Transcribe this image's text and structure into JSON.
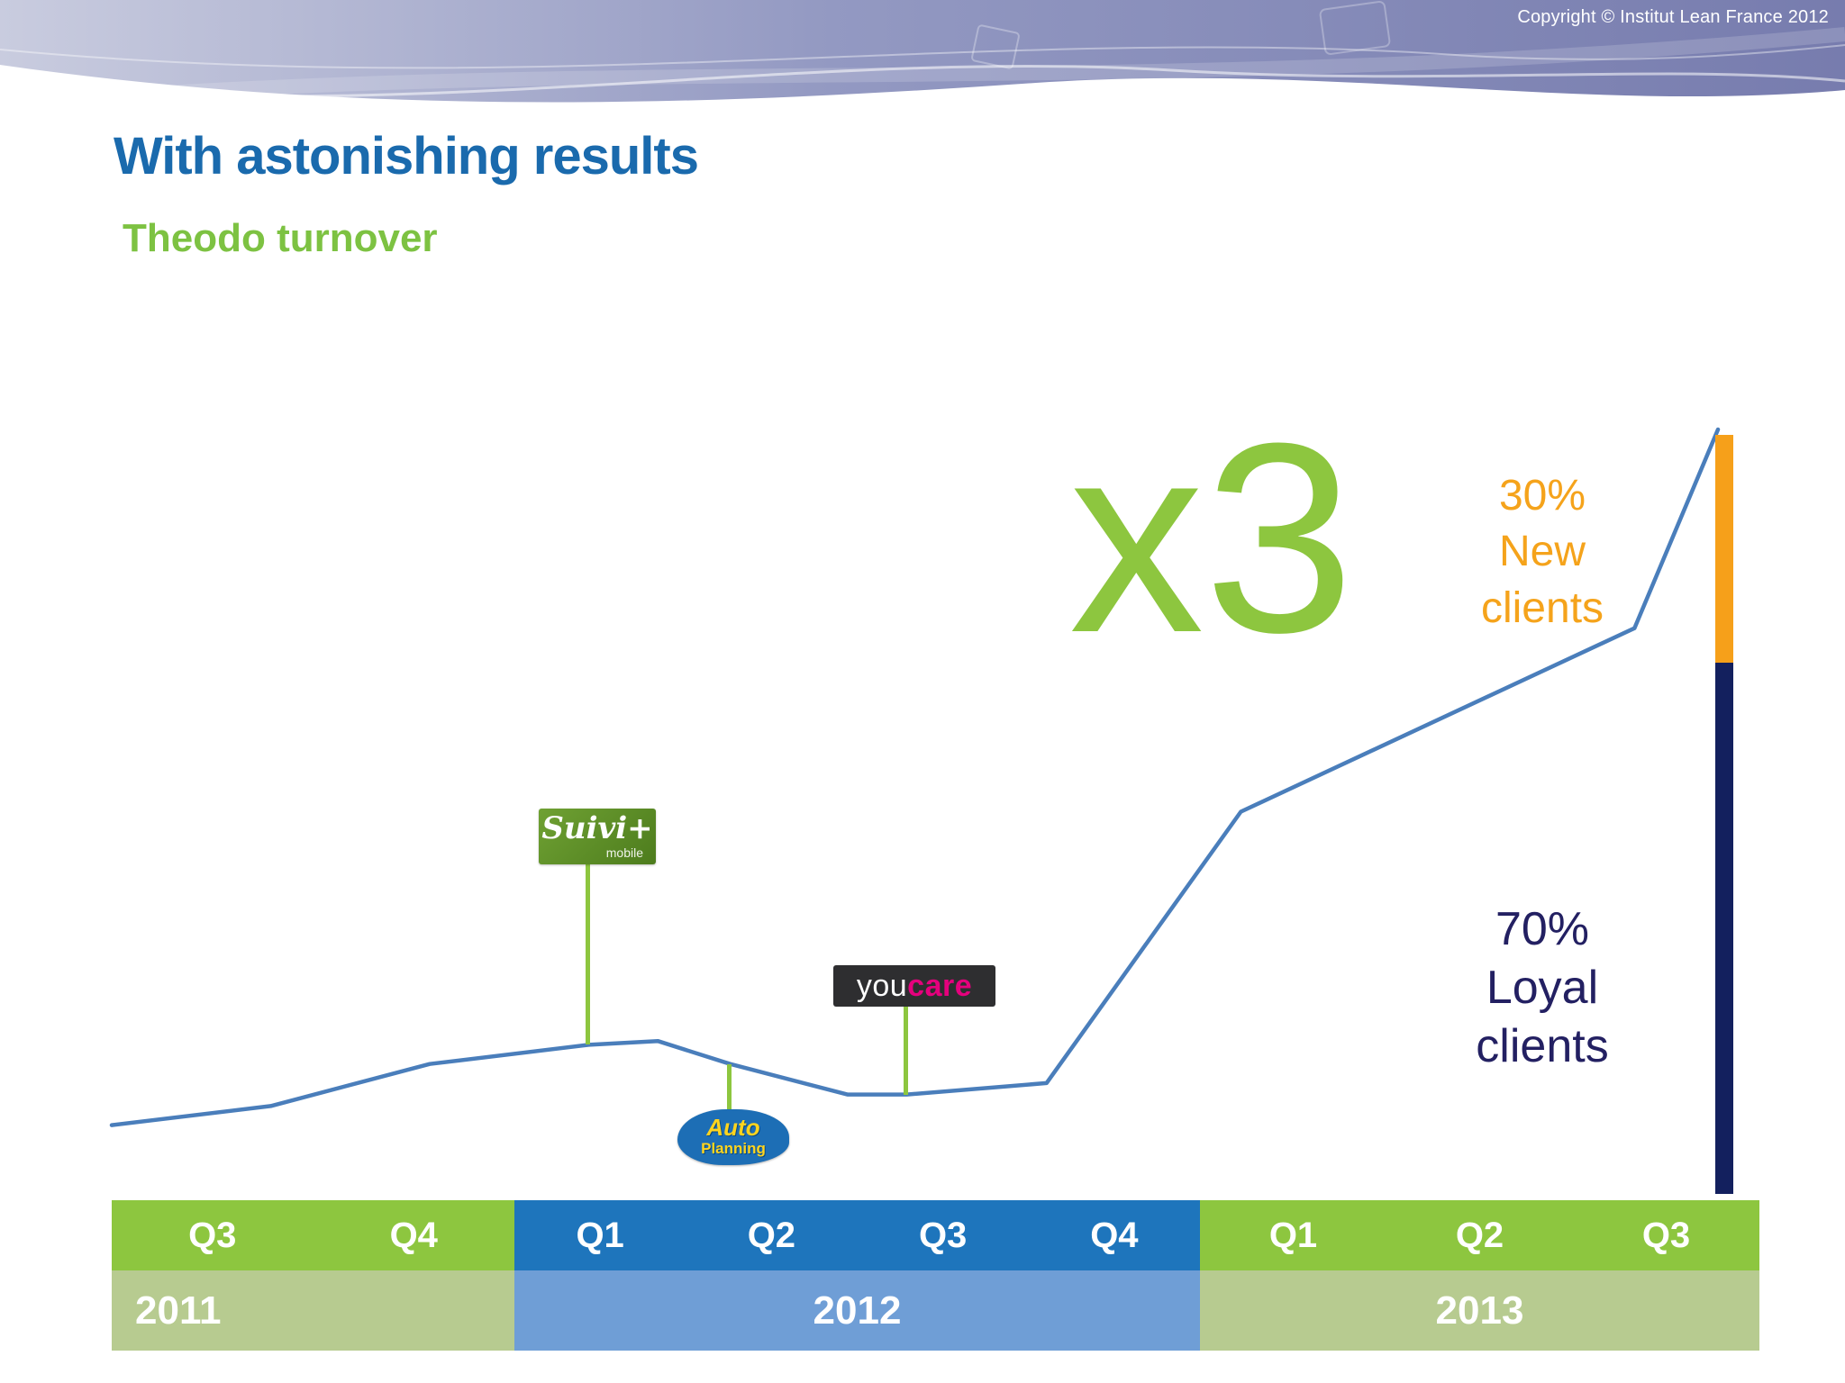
{
  "meta": {
    "copyright": "Copyright © Institut Lean France 2012"
  },
  "title": "With astonishing results",
  "subtitle": "Theodo turnover",
  "colors": {
    "title_blue": "#1a6aad",
    "subtitle_green": "#7dc242",
    "line_blue": "#4a7ebb",
    "multiplier_green": "#8dc63f",
    "new_clients_orange": "#f5a31b",
    "loyal_clients_navy": "#232062",
    "bar_orange": "#f6a01a",
    "bar_navy": "#13205e",
    "quarter_band_green": "#8dc63f",
    "quarter_band_blue": "#1e75bc",
    "year_band_green": "#b7cb90",
    "year_band_blue": "#6f9ed6",
    "header_purple": "#7a7fb3",
    "connector_green": "#8dc63f"
  },
  "chart_data": {
    "type": "line",
    "title": "Theodo turnover",
    "x_axis": "Quarters, Q3 2011 to Q3 2013",
    "y_axis": "Turnover (indexed, Q3 2013 = 100)",
    "line_color": "#4a7ebb",
    "x_labels": [
      "Q3 2011",
      "Q4 2011",
      "Q1 2012",
      "Q2 2012",
      "Q3 2012",
      "Q4 2012",
      "Q1 2013",
      "Q2 2013",
      "Q3 2013"
    ],
    "points": [
      {
        "t": 0.0,
        "v": 9
      },
      {
        "t": 0.099,
        "v": 11.5
      },
      {
        "t": 0.198,
        "v": 17
      },
      {
        "t": 0.297,
        "v": 19.5
      },
      {
        "t": 0.34,
        "v": 20
      },
      {
        "t": 0.385,
        "v": 17
      },
      {
        "t": 0.458,
        "v": 13
      },
      {
        "t": 0.495,
        "v": 13
      },
      {
        "t": 0.582,
        "v": 14.5
      },
      {
        "t": 0.703,
        "v": 50
      },
      {
        "t": 0.948,
        "v": 74
      },
      {
        "t": 1.0,
        "v": 100
      }
    ],
    "annotations": {
      "multiplier": "x3",
      "new_clients": {
        "lines": [
          "30%",
          "New",
          "clients"
        ],
        "color": "#f5a31b"
      },
      "loyal_clients": {
        "lines": [
          "70%",
          "Loyal",
          "clients"
        ],
        "color": "#232062"
      }
    },
    "client_split_bar": {
      "segments": [
        {
          "name": "New clients",
          "percent": 30,
          "color": "#f6a01a"
        },
        {
          "name": "Loyal clients",
          "percent": 70,
          "color": "#13205e"
        }
      ]
    },
    "event_markers": [
      {
        "label": "Suivi+ mobile",
        "at": "Q1 2012"
      },
      {
        "label": "Auto Planning",
        "at": "Q2 2012"
      },
      {
        "label": "youcare",
        "at": "Q3 2012"
      }
    ]
  },
  "axis": {
    "groups": [
      {
        "year": "2011",
        "quarters": [
          "Q3",
          "Q4"
        ]
      },
      {
        "year": "2012",
        "quarters": [
          "Q1",
          "Q2",
          "Q3",
          "Q4"
        ]
      },
      {
        "year": "2013",
        "quarters": [
          "Q1",
          "Q2",
          "Q3"
        ]
      }
    ]
  },
  "logos": {
    "suivi": {
      "name": "Suivi+",
      "sub": "mobile"
    },
    "youcare": {
      "part1": "you",
      "part2": "care"
    },
    "autoplanning": {
      "line1": "Auto",
      "line2": "Planning"
    }
  }
}
